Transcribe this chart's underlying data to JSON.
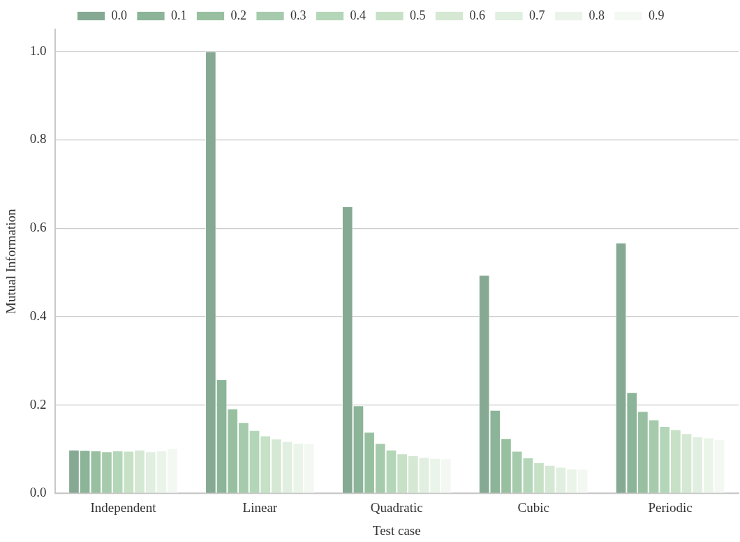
{
  "chart_data": {
    "type": "bar",
    "xlabel": "Test case",
    "ylabel": "Mutual Information",
    "categories": [
      "Independent",
      "Linear",
      "Quadratic",
      "Cubic",
      "Periodic"
    ],
    "series": [
      {
        "name": "0.0",
        "color": "#86a993",
        "values": [
          0.099,
          1.0,
          0.649,
          0.494,
          0.567
        ]
      },
      {
        "name": "0.1",
        "color": "#8bb498",
        "values": [
          0.098,
          0.258,
          0.199,
          0.189,
          0.229
        ]
      },
      {
        "name": "0.2",
        "color": "#98c0a0",
        "values": [
          0.097,
          0.192,
          0.139,
          0.125,
          0.186
        ]
      },
      {
        "name": "0.3",
        "color": "#a6cbac",
        "values": [
          0.095,
          0.161,
          0.114,
          0.096,
          0.167
        ]
      },
      {
        "name": "0.4",
        "color": "#b4d6b8",
        "values": [
          0.097,
          0.143,
          0.099,
          0.081,
          0.152
        ]
      },
      {
        "name": "0.5",
        "color": "#c6e1c5",
        "values": [
          0.096,
          0.131,
          0.09,
          0.07,
          0.145
        ]
      },
      {
        "name": "0.6",
        "color": "#d5e8d3",
        "values": [
          0.099,
          0.124,
          0.086,
          0.064,
          0.136
        ]
      },
      {
        "name": "0.7",
        "color": "#e0efdf",
        "values": [
          0.095,
          0.118,
          0.082,
          0.06,
          0.129
        ]
      },
      {
        "name": "0.8",
        "color": "#eaf4e9",
        "values": [
          0.097,
          0.114,
          0.08,
          0.056,
          0.126
        ]
      },
      {
        "name": "0.9",
        "color": "#f3f8f2",
        "values": [
          0.102,
          0.113,
          0.079,
          0.055,
          0.122
        ]
      }
    ],
    "ylim": [
      0,
      1.05
    ],
    "yticks": [
      {
        "value": 0,
        "label": "0.0"
      },
      {
        "value": 0.2,
        "label": "0.2"
      },
      {
        "value": 0.4,
        "label": "0.4"
      },
      {
        "value": 0.6,
        "label": "0.6"
      },
      {
        "value": 0.8,
        "label": "0.8"
      },
      {
        "value": 1,
        "label": "1.0"
      }
    ],
    "grid": "y",
    "legend": "top"
  }
}
